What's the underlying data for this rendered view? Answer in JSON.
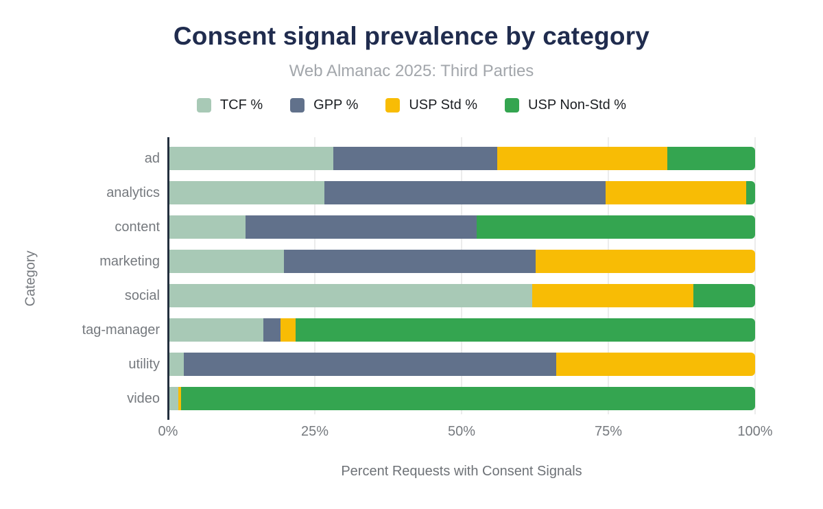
{
  "chart_data": {
    "type": "bar",
    "orientation": "horizontal",
    "stacked": true,
    "title": "Consent signal prevalence by category",
    "subtitle": "Web Almanac 2025: Third Parties",
    "xlabel": "Percent Requests with Consent Signals",
    "ylabel": "Category",
    "xlim": [
      0,
      100
    ],
    "x_ticks": [
      {
        "value": 0,
        "label": "0%"
      },
      {
        "value": 25,
        "label": "25%"
      },
      {
        "value": 50,
        "label": "50%"
      },
      {
        "value": 75,
        "label": "75%"
      },
      {
        "value": 100,
        "label": "100%"
      }
    ],
    "grid": true,
    "legend_position": "top",
    "categories": [
      "ad",
      "analytics",
      "content",
      "marketing",
      "social",
      "tag-manager",
      "utility",
      "video"
    ],
    "series": [
      {
        "name": "TCF %",
        "key": "tcf",
        "color": "#a8c9b6",
        "values": [
          28,
          26.5,
          13,
          19.5,
          62,
          16,
          2.5,
          1.5
        ]
      },
      {
        "name": "GPP %",
        "key": "gpp",
        "color": "#61718b",
        "values": [
          28,
          48,
          39.5,
          43,
          0,
          3,
          63.5,
          0
        ]
      },
      {
        "name": "USP Std %",
        "key": "usp-std",
        "color": "#f8bc05",
        "values": [
          29,
          24,
          0,
          37.5,
          27.5,
          2.5,
          34,
          0.5
        ]
      },
      {
        "name": "USP Non-Std %",
        "key": "usp-non-std",
        "color": "#34a550",
        "values": [
          15,
          1.5,
          47.5,
          0,
          10.5,
          78.5,
          0,
          98
        ]
      }
    ]
  },
  "colors": {
    "background": "#ffffff",
    "title": "#202c4e",
    "subtitle": "#a2a6ab",
    "legend_text": "#1b1e22",
    "axis_text": "#75797e",
    "axis_line": "#222e3d",
    "gridline": "#ececec"
  }
}
